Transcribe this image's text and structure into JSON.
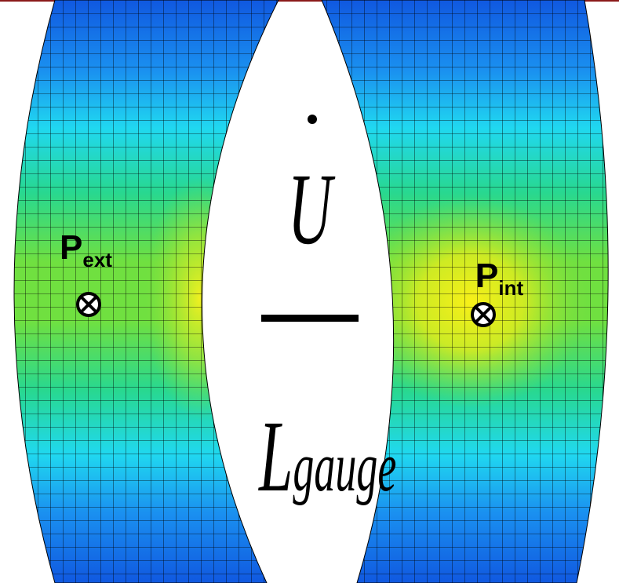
{
  "labels": {
    "p_ext": {
      "main": "P",
      "sub": "ext"
    },
    "p_int": {
      "main": "P",
      "sub": "int"
    }
  },
  "fraction": {
    "numerator": "U",
    "denominator": {
      "main": "L",
      "sub": "gauge"
    }
  }
}
